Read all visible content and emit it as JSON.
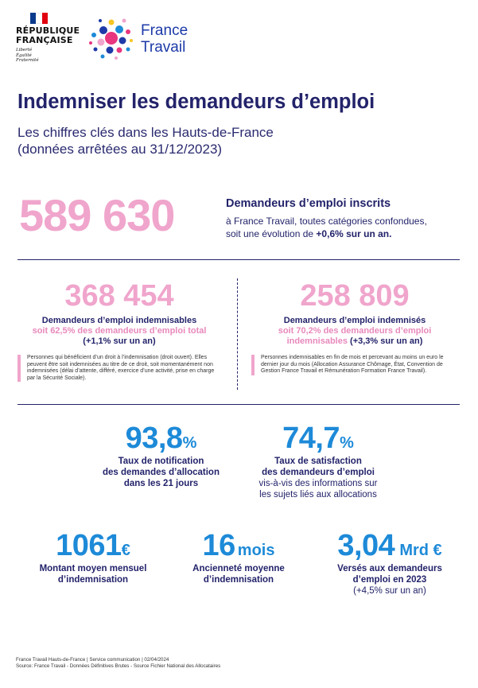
{
  "header": {
    "republique_line1": "RÉPUBLIQUE",
    "republique_line2": "FRANÇAISE",
    "motto1": "Liberté",
    "motto2": "Égalité",
    "motto3": "Fraternité",
    "brand_line1": "France",
    "brand_line2": "Travail"
  },
  "title": "Indemniser les demandeurs d’emploi",
  "subtitle1": "Les chiffres clés dans les Hauts-de-France",
  "subtitle2": "(données arrêtées au 31/12/2023)",
  "main_stat": {
    "value": "589 630",
    "title": "Demandeurs d’emploi inscrits",
    "desc1": "à France Travail, toutes catégories confondues,",
    "desc2_pre": "soit une évolution de ",
    "desc2_bold": "+0,6% sur un an."
  },
  "left_stat": {
    "value": "368 454",
    "title": "Demandeurs d’emploi indemnisables",
    "pink": "soit 62,5% des demandeurs d’emploi total",
    "change": "(+1,1% sur un an)",
    "note": "Personnes qui bénéficient d’un droit à l’indemnisation (droit ouvert). Elles peuvent être soit indemnisées au titre de ce droit, soit momentanément non indemnisées (délai d’attente, différé, exercice d’une activité, prise en charge par la Sécurité Sociale)."
  },
  "right_stat": {
    "value": "258 809",
    "title": "Demandeurs d’emploi indemnisés",
    "pink": "soit 70,2% des demandeurs d’emploi",
    "pink2": "indemnisables",
    "change": " (+3,3% sur un an)",
    "note": "Personnes indemnisables en fin de mois et percevant au moins un euro le dernier jour du mois (Allocation Assurance Chômage, État, Convention de Gestion France Travail et Rémunération Formation France Travail)."
  },
  "notif": {
    "value": "93,8",
    "unit": "%",
    "l1": "Taux de notification",
    "l2": "des demandes d’allocation",
    "l3": "dans les 21 jours"
  },
  "satis": {
    "value": "74,7",
    "unit": "%",
    "l1": "Taux de satisfaction",
    "l2": "des demandeurs d’emploi",
    "m1": "vis-à-vis des informations sur",
    "m2": "les sujets liés aux allocations"
  },
  "montant": {
    "value": "1061",
    "unit": "€",
    "l1": "Montant moyen mensuel",
    "l2": "d’indemnisation"
  },
  "anciennete": {
    "value": "16",
    "unit": "mois",
    "l1": "Ancienneté moyenne",
    "l2": "d’indemnisation"
  },
  "verses": {
    "value": "3,04",
    "unit": "Mrd €",
    "l1": "Versés aux demandeurs",
    "l2": "d’emploi en 2023",
    "m1": "(+4,5% sur un an)"
  },
  "footer": {
    "line1": "France Travail Hauts-de-France | Service communication | 02/04/2024",
    "line2": "Source: France Travail - Données Définitives Brutes - Source Fichier National des Allocataires"
  },
  "colors": {
    "navy": "#23236b",
    "pink": "#f0a5cc",
    "blue": "#1d8ad8"
  }
}
